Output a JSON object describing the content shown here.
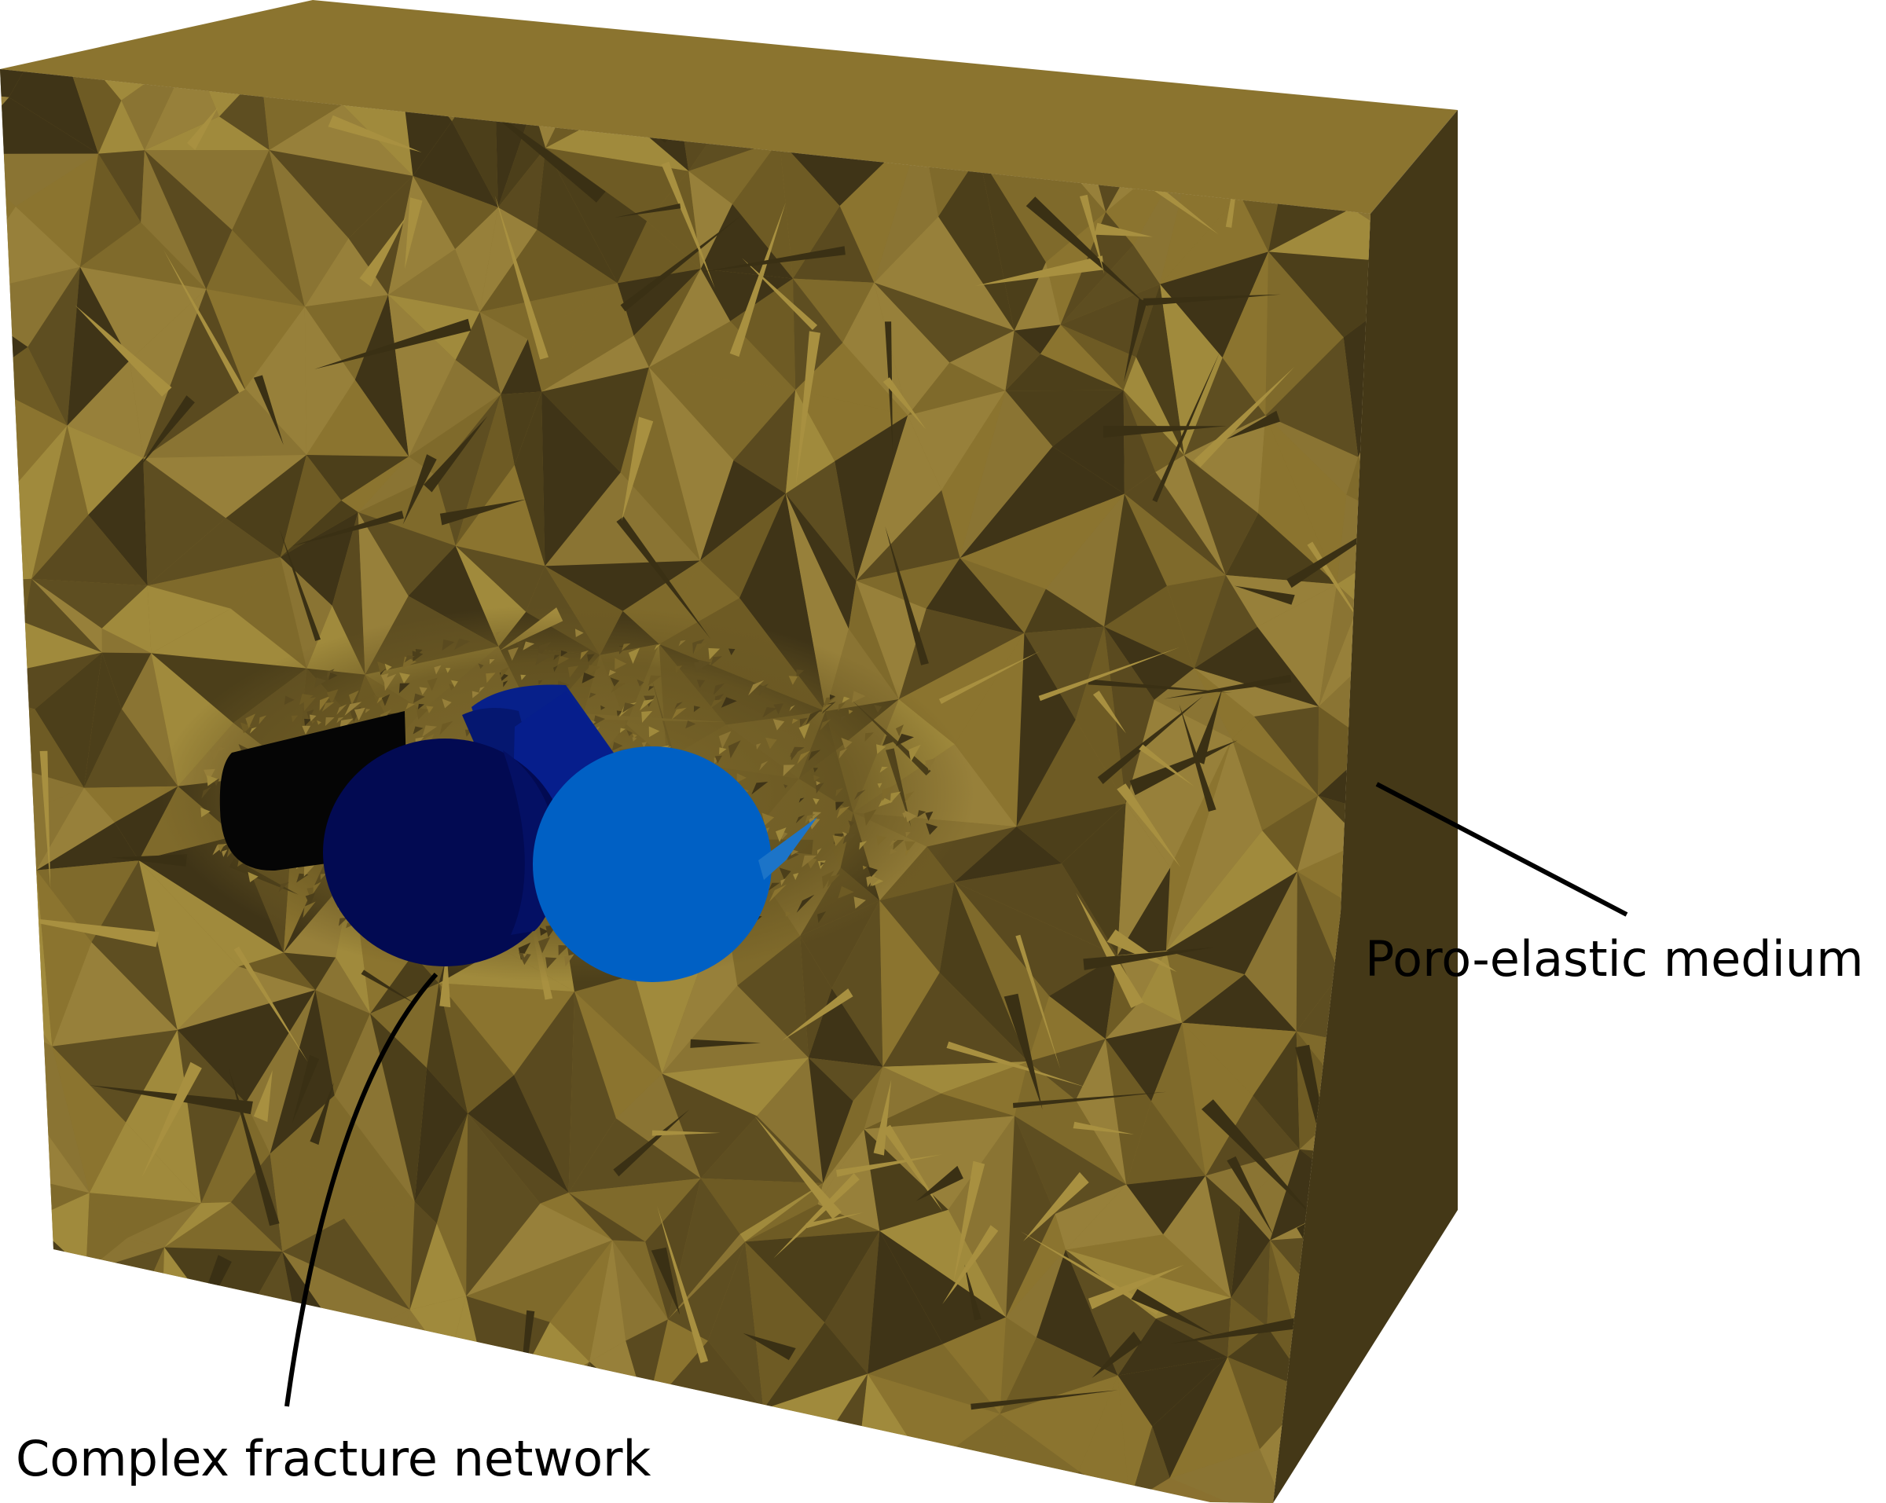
{
  "labels": {
    "medium": "Poro-elastic medium",
    "fractures": "Complex fracture network"
  },
  "colors": {
    "background": "#ffffff",
    "block_front": "#8a7130",
    "block_top": "#8b742f",
    "block_side": "#433816",
    "mesh_dark": "#3f3417",
    "mesh_mid": "#6e5b24",
    "mesh_light": "#a08a3c",
    "fracture_black": "#050505",
    "fracture_navy": "#020a52",
    "fracture_blue": "#07208a",
    "fracture_light_blue": "#0060c4",
    "leader_line": "#000000"
  }
}
